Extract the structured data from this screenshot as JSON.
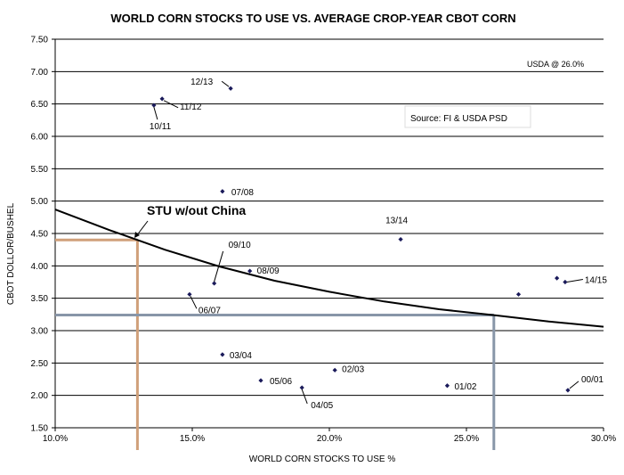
{
  "chart_data": {
    "type": "scatter",
    "title": "WORLD CORN STOCKS TO USE VS. AVERAGE CROP-YEAR CBOT CORN",
    "xlabel": "WORLD CORN STOCKS TO USE %",
    "ylabel": "CBOT DOLLOR/BUSHEL",
    "xlim": [
      10.0,
      30.0
    ],
    "ylim": [
      1.5,
      7.5
    ],
    "x_ticks": [
      "10.0%",
      "15.0%",
      "20.0%",
      "25.0%",
      "30.0%"
    ],
    "y_ticks": [
      "1.50",
      "2.00",
      "2.50",
      "3.00",
      "3.50",
      "4.00",
      "4.50",
      "5.00",
      "5.50",
      "6.00",
      "6.50",
      "7.00",
      "7.50"
    ],
    "grid": "horizontal",
    "points": [
      {
        "label": "12/13",
        "x": 16.4,
        "y": 6.74
      },
      {
        "label": "11/12",
        "x": 13.9,
        "y": 6.58
      },
      {
        "label": "10/11",
        "x": 13.6,
        "y": 6.48
      },
      {
        "label": "07/08",
        "x": 16.1,
        "y": 5.15
      },
      {
        "label": "13/14",
        "x": 22.6,
        "y": 4.41
      },
      {
        "label": "09/10",
        "x": 15.8,
        "y": 3.73
      },
      {
        "label": "08/09",
        "x": 17.1,
        "y": 3.92
      },
      {
        "label": "06/07",
        "x": 14.9,
        "y": 3.56
      },
      {
        "label": "14/15",
        "x": 28.6,
        "y": 3.75
      },
      {
        "label": "",
        "x": 28.3,
        "y": 3.81
      },
      {
        "label": "",
        "x": 26.9,
        "y": 3.56
      },
      {
        "label": "03/04",
        "x": 16.1,
        "y": 2.63
      },
      {
        "label": "05/06",
        "x": 17.5,
        "y": 2.23
      },
      {
        "label": "04/05",
        "x": 19.0,
        "y": 2.12
      },
      {
        "label": "02/03",
        "x": 20.2,
        "y": 2.39
      },
      {
        "label": "01/02",
        "x": 24.3,
        "y": 2.15
      },
      {
        "label": "00/01",
        "x": 28.7,
        "y": 2.08
      }
    ],
    "trendline": {
      "x": [
        10.0,
        12.0,
        14.0,
        16.0,
        18.0,
        20.0,
        22.0,
        24.0,
        26.0,
        28.0,
        30.0
      ],
      "y": [
        4.87,
        4.55,
        4.25,
        3.99,
        3.77,
        3.6,
        3.45,
        3.33,
        3.24,
        3.14,
        3.06
      ]
    },
    "markers": [
      {
        "name": "STU w/out China",
        "x": 13.0,
        "y": 4.4,
        "color": "#d0a07a"
      },
      {
        "name": "USDA @ 26.0%",
        "x": 26.0,
        "y": 3.24,
        "color": "#8896a8"
      }
    ],
    "annotations": {
      "stu": "STU w/out China",
      "usda": "USDA @  26.0%",
      "source": "Source: FI & USDA PSD"
    }
  }
}
